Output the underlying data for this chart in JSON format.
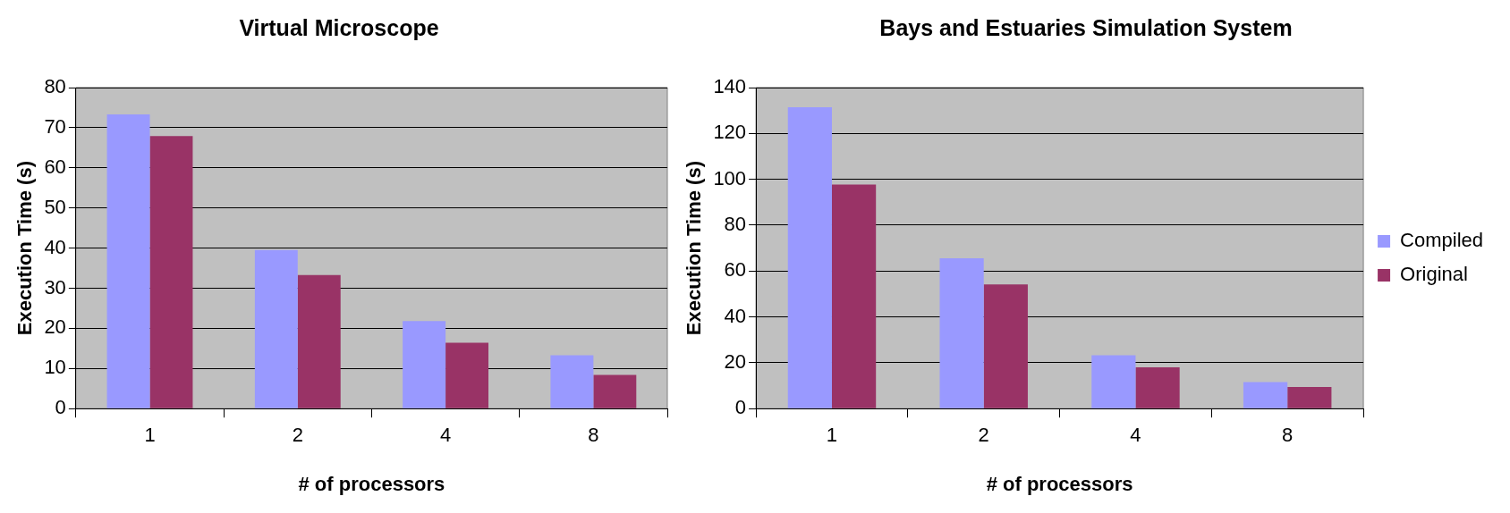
{
  "chart_data": [
    {
      "type": "bar",
      "title": "Virtual Microscope",
      "xlabel": "# of processors",
      "ylabel": "Execution Time (s)",
      "categories": [
        "1",
        "2",
        "4",
        "8"
      ],
      "series": [
        {
          "color": "#9999ff",
          "values": [
            73.3,
            39.5,
            21.8,
            13.3
          ]
        },
        {
          "color": "#993366",
          "values": [
            67.9,
            33.3,
            16.4,
            8.4
          ]
        }
      ],
      "ylim": [
        0,
        80
      ],
      "yticks": [
        0,
        10,
        20,
        30,
        40,
        50,
        60,
        70,
        80
      ],
      "grid": "y",
      "legend": false
    },
    {
      "type": "bar",
      "title": "Bays and Estuaries Simulation System",
      "xlabel": "# of processors",
      "ylabel": "Execution Time (s)",
      "categories": [
        "1",
        "2",
        "4",
        "8"
      ],
      "series": [
        {
          "name": "Compiled",
          "color": "#9999ff",
          "values": [
            131.4,
            65.6,
            23.3,
            11.6
          ]
        },
        {
          "name": "Original",
          "color": "#993366",
          "values": [
            97.7,
            54.2,
            18,
            9.4
          ]
        }
      ],
      "ylim": [
        0,
        140
      ],
      "yticks": [
        0,
        20,
        40,
        60,
        80,
        100,
        120,
        140
      ],
      "grid": "y",
      "legend": "right"
    }
  ]
}
